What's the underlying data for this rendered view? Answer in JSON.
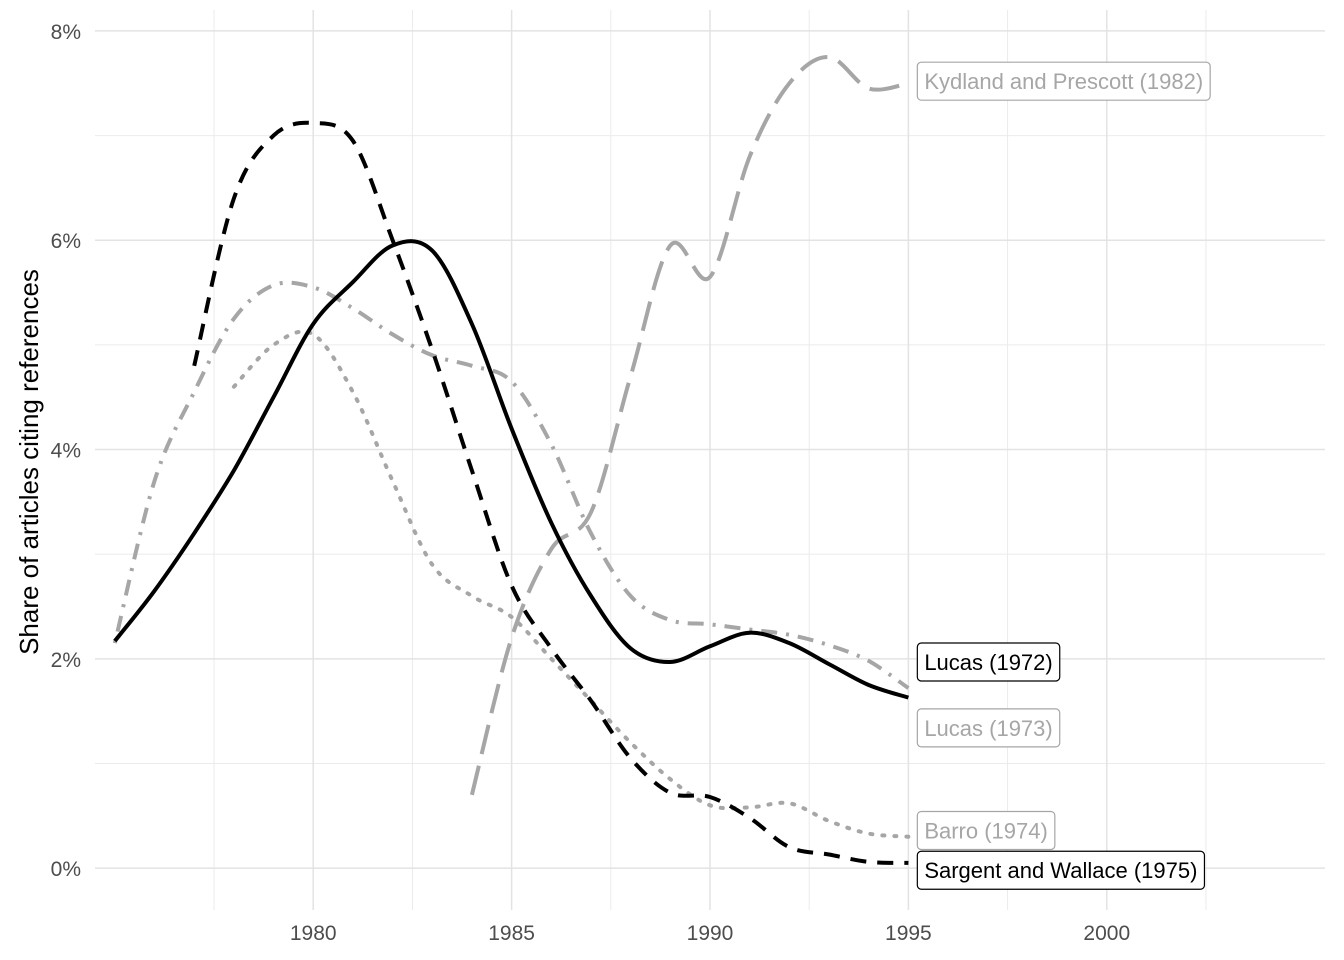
{
  "chart_data": {
    "type": "line",
    "title": "",
    "xlabel": "",
    "ylabel": "Share of articles citing references",
    "xlim": [
      1974.5,
      2005.5
    ],
    "ylim": [
      -0.4,
      8.2
    ],
    "x_ticks": [
      1980,
      1985,
      1990,
      1995,
      2000
    ],
    "x_tick_labels": [
      "1980",
      "1985",
      "1990",
      "1995",
      "2000"
    ],
    "y_ticks": [
      0,
      2,
      4,
      6,
      8
    ],
    "y_tick_labels": [
      "0%",
      "2%",
      "4%",
      "6%",
      "8%"
    ],
    "grid": true,
    "legend": "direct labels at line ends",
    "series": [
      {
        "name": "Lucas (1972)",
        "color": "#000000",
        "dash": "solid",
        "label_x": 1995.2,
        "label_y": 1.97,
        "x": [
          1975,
          1976,
          1977,
          1978,
          1979,
          1980,
          1981,
          1982,
          1983,
          1984,
          1985,
          1986,
          1987,
          1988,
          1989,
          1990,
          1991,
          1992,
          1993,
          1994,
          1995
        ],
        "y": [
          2.17,
          2.65,
          3.2,
          3.8,
          4.5,
          5.2,
          5.6,
          5.95,
          5.9,
          5.2,
          4.2,
          3.3,
          2.6,
          2.1,
          1.97,
          2.12,
          2.25,
          2.15,
          1.95,
          1.75,
          1.63
        ]
      },
      {
        "name": "Lucas (1973)",
        "color": "#a6a6a6",
        "dash": "dotdash",
        "label_x": 1995.2,
        "label_y": 1.34,
        "x": [
          1975,
          1976,
          1977,
          1978,
          1979,
          1980,
          1981,
          1982,
          1983,
          1984,
          1985,
          1986,
          1987,
          1988,
          1989,
          1990,
          1991,
          1992,
          1993,
          1994,
          1995
        ],
        "y": [
          2.15,
          3.7,
          4.55,
          5.25,
          5.57,
          5.55,
          5.35,
          5.1,
          4.9,
          4.8,
          4.65,
          4.05,
          3.2,
          2.6,
          2.37,
          2.33,
          2.28,
          2.23,
          2.13,
          1.98,
          1.72
        ]
      },
      {
        "name": "Barro (1974)",
        "color": "#a6a6a6",
        "dash": "dotted",
        "label_x": 1995.2,
        "label_y": 0.36,
        "x": [
          1978,
          1979,
          1980,
          1981,
          1982,
          1983,
          1984,
          1985,
          1986,
          1987,
          1988,
          1989,
          1990,
          1991,
          1992,
          1993,
          1994,
          1995
        ],
        "y": [
          4.6,
          5.0,
          5.1,
          4.55,
          3.7,
          2.9,
          2.6,
          2.4,
          2.0,
          1.6,
          1.2,
          0.85,
          0.6,
          0.58,
          0.62,
          0.45,
          0.33,
          0.3
        ]
      },
      {
        "name": "Sargent and Wallace (1975)",
        "color": "#000000",
        "dash": "dashed",
        "label_x": 1995.2,
        "label_y": -0.02,
        "x": [
          1977,
          1978,
          1979,
          1980,
          1981,
          1982,
          1983,
          1984,
          1985,
          1986,
          1987,
          1988,
          1989,
          1990,
          1991,
          1992,
          1993,
          1994,
          1995
        ],
        "y": [
          4.8,
          6.4,
          7.0,
          7.12,
          6.95,
          6.0,
          4.95,
          3.8,
          2.7,
          2.1,
          1.6,
          1.05,
          0.72,
          0.68,
          0.48,
          0.2,
          0.13,
          0.06,
          0.05
        ]
      },
      {
        "name": "Kydland and Prescott (1982)",
        "color": "#a6a6a6",
        "dash": "longdash",
        "label_x": 1995.2,
        "label_y": 7.52,
        "x": [
          1984,
          1985,
          1986,
          1987,
          1988,
          1989,
          1990,
          1991,
          1992,
          1993,
          1994,
          1995
        ],
        "y": [
          0.7,
          2.2,
          3.05,
          3.4,
          4.7,
          5.95,
          5.65,
          6.8,
          7.5,
          7.75,
          7.45,
          7.5
        ]
      }
    ]
  }
}
